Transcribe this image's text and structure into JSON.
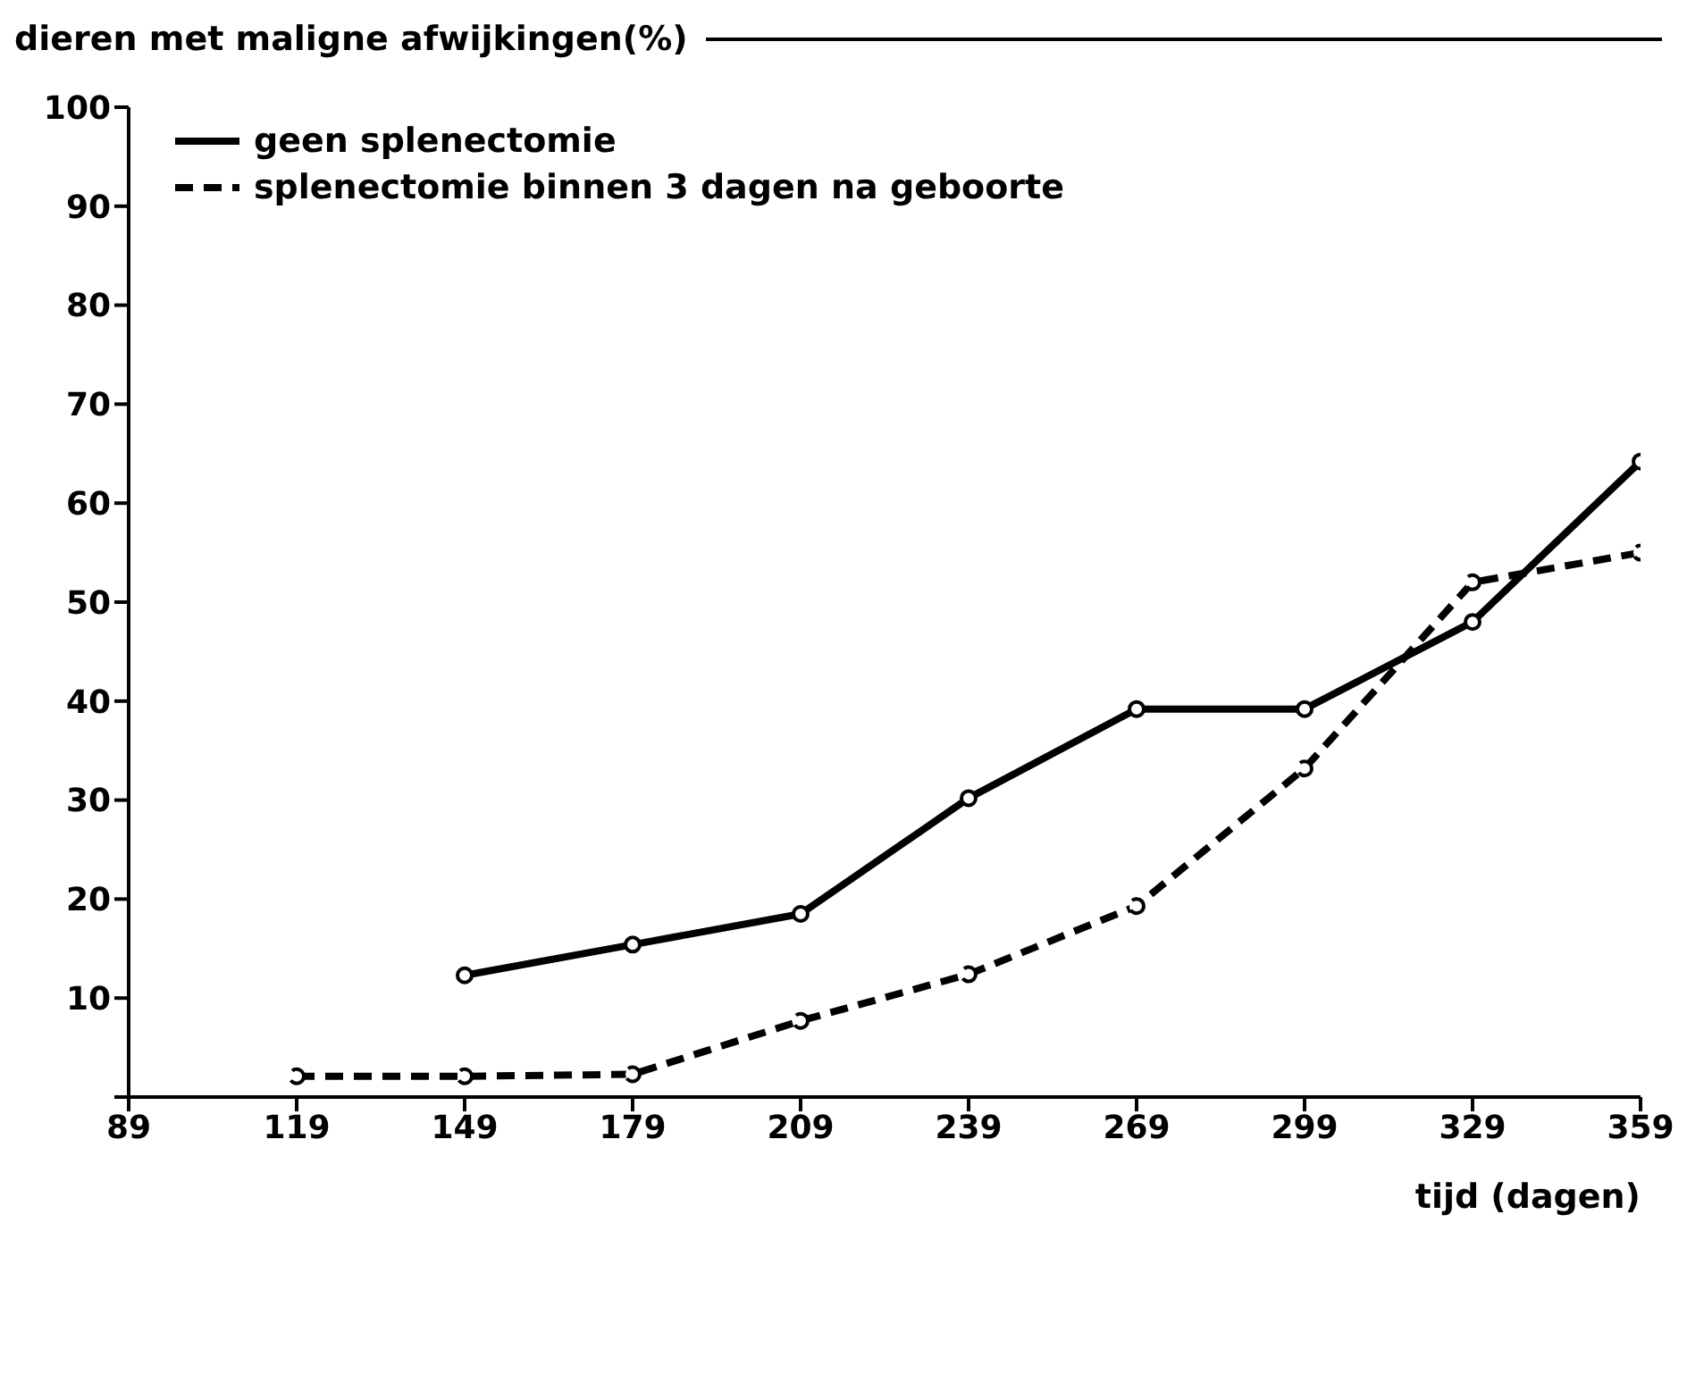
{
  "chart_data": {
    "type": "line",
    "title": "dieren met maligne afwijkingen(%)",
    "xlabel": "tijd (dagen)",
    "x": [
      119,
      149,
      179,
      209,
      239,
      269,
      299,
      329,
      359
    ],
    "series": [
      {
        "name": "geen splenectomie",
        "color": "#000000",
        "line_style": "solid",
        "values": [
          null,
          12.3,
          15.4,
          18.5,
          30.2,
          39.2,
          39.2,
          48,
          64.2
        ]
      },
      {
        "name": "splenectomie binnen 3 dagen na geboorte",
        "color": "#000000",
        "line_style": "dashed",
        "values": [
          2.1,
          2.1,
          2.3,
          7.7,
          12.4,
          19.3,
          33.2,
          52,
          55
        ]
      }
    ],
    "xlim": [
      89,
      359
    ],
    "xticks": [
      89,
      119,
      149,
      179,
      209,
      239,
      269,
      299,
      329,
      359
    ],
    "ylim": [
      0,
      100
    ],
    "yticks": [
      {
        "value": 0,
        "label": null
      },
      10,
      20,
      30,
      40,
      50,
      60,
      70,
      80,
      90,
      100
    ],
    "grid": false,
    "legend": "top left",
    "marker": "circle"
  }
}
